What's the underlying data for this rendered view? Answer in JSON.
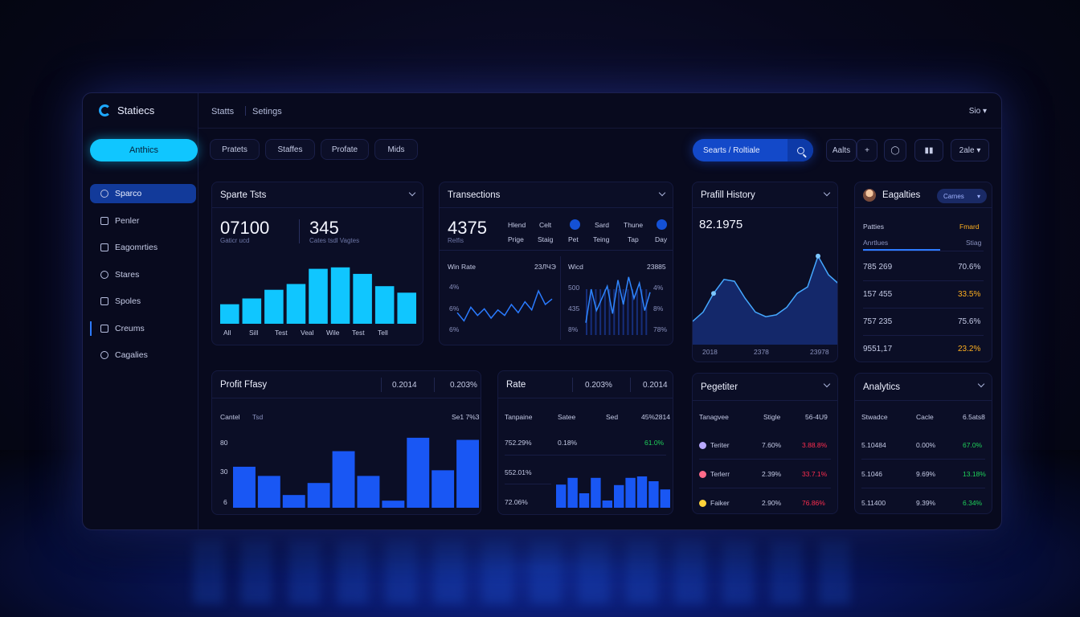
{
  "app": {
    "name": "Statiecs"
  },
  "topbar": {
    "links": [
      "Statts",
      "Setings"
    ],
    "user": "Sio"
  },
  "sidebar": {
    "primary_button": "Anthics",
    "items": [
      {
        "label": "Sparco",
        "icon": "search-icon",
        "active": true
      },
      {
        "label": "Penler",
        "icon": "image-icon"
      },
      {
        "label": "Eagomrties",
        "icon": "link-icon"
      },
      {
        "label": "Stares",
        "icon": "chat-icon"
      },
      {
        "label": "Spoles",
        "icon": "lock-icon"
      },
      {
        "label": "Creums",
        "icon": "image-icon",
        "marked": true
      },
      {
        "label": "Cagalies",
        "icon": "smile-icon"
      }
    ]
  },
  "toolbar": {
    "chips": [
      "Pratets",
      "Staffes",
      "Profate",
      "Mids"
    ],
    "search_text": "Searts / Roltiale",
    "tools": [
      "Aalts",
      "+",
      "",
      "",
      "2ale"
    ]
  },
  "card1": {
    "title": "Sparte Tsts",
    "big1": "07100",
    "sub1": "Gaticr ucd",
    "big2": "345",
    "sub2": "Cates tsdl Vagtes",
    "x_labels": [
      "All",
      "Sill",
      "Test",
      "Veal",
      "Wile",
      "Test",
      "Tell"
    ]
  },
  "card2": {
    "title": "Transections",
    "big": "4375",
    "sub": "Relfis",
    "top_labels": [
      "Hlend",
      "Prige",
      "Celt",
      "Staig",
      "Pet",
      "Sard",
      "Teing",
      "Thune",
      "Tap",
      "Day"
    ],
    "left_title": "Win Rate",
    "left_value": "23ЛЧЭ",
    "left_y": [
      "4%",
      "6%",
      "6%"
    ],
    "right_title": "Wicd",
    "right_value": "23885",
    "right_y": [
      "500",
      "435",
      "8%"
    ],
    "right_y2": [
      "4%",
      "8%",
      "78%"
    ]
  },
  "card3": {
    "title": "Prafill History",
    "big": "82.1975",
    "x_labels": [
      "2018",
      "2378",
      "23978"
    ]
  },
  "card4": {
    "title": "Eagalties",
    "select": "Carnes",
    "head_left": "Patties",
    "head_right": "Fmard",
    "tab_left": "Anrtlues",
    "tab_right": "Stiag",
    "rows": [
      {
        "value": "785 269",
        "pct": "70.6%",
        "pct_color": "white"
      },
      {
        "value": "157 455",
        "pct": "33.5%",
        "pct_color": "orange"
      },
      {
        "value": "757 235",
        "pct": "75.6%",
        "pct_color": "white"
      },
      {
        "value": "9551,17",
        "pct": "23.2%",
        "pct_color": "orange"
      }
    ]
  },
  "card5": {
    "title": "Profit Ffasy",
    "stat1": "0.2014",
    "stat2": "0.203%",
    "sub_left": "Cantel",
    "sub_mid": "Tsd",
    "sub_right": "Se1 7%3",
    "y_labels": [
      "80",
      "30",
      "6"
    ]
  },
  "card6": {
    "title": "Rate",
    "stat1": "0.203%",
    "stat2": "0.2014",
    "cols": [
      "Tanpaine",
      "Satee",
      "Sed",
      "45%2814"
    ],
    "rows": [
      {
        "c1": "752.29%",
        "c2": "0.18%",
        "c3": "61.0%"
      },
      {
        "c1": "552.01%"
      },
      {
        "c1": "72.06%"
      }
    ]
  },
  "card7": {
    "title": "Pegetiter",
    "cols": [
      "Tanagvee",
      "Stigle",
      "56-4U9"
    ],
    "rows": [
      {
        "name": "Teriter",
        "v": "7.60%",
        "p": "3.88.8%",
        "dot": "#b9a9ff"
      },
      {
        "name": "Terlerr",
        "v": "2.39%",
        "p": "33.7.1%",
        "dot": "#ff6b8a"
      },
      {
        "name": "Faiker",
        "v": "2.90%",
        "p": "76.86%",
        "dot": "#ffd23a"
      }
    ]
  },
  "card8": {
    "title": "Analytics",
    "cols": [
      "Stwadce",
      "Cacle",
      "6.5ats8"
    ],
    "rows": [
      {
        "a": "5.10484",
        "b": "0.00%",
        "c": "67.0%"
      },
      {
        "a": "5.1046",
        "b": "9.69%",
        "c": "13.18%"
      },
      {
        "a": "5.11400",
        "b": "9.39%",
        "c": "6.34%"
      }
    ]
  },
  "charts": {
    "card1_bars": [
      0.27,
      0.35,
      0.47,
      0.55,
      0.76,
      0.78,
      0.69,
      0.52,
      0.43
    ],
    "card5_bars": [
      0.58,
      0.45,
      0.18,
      0.35,
      0.8,
      0.45,
      0.1,
      0.99,
      0.53,
      0.96
    ],
    "card6_bars": [
      0.48,
      0.62,
      0.3,
      0.62,
      0.15,
      0.47,
      0.62,
      0.65,
      0.55,
      0.38
    ],
    "card2_left_line": [
      0.35,
      0.2,
      0.45,
      0.3,
      0.42,
      0.25,
      0.4,
      0.3,
      0.5,
      0.35,
      0.55,
      0.4,
      0.75,
      0.5,
      0.6
    ],
    "card2_right_line": [
      0.2,
      0.75,
      0.4,
      0.6,
      0.8,
      0.35,
      0.9,
      0.5,
      0.95,
      0.6,
      0.85,
      0.4,
      0.7
    ],
    "card3_area": [
      0.25,
      0.35,
      0.55,
      0.7,
      0.68,
      0.5,
      0.35,
      0.3,
      0.32,
      0.4,
      0.55,
      0.62,
      0.95,
      0.75,
      0.65
    ]
  },
  "colors": {
    "accent": "#10c6ff",
    "primary": "#1349c9",
    "bar": "#1a5cff",
    "green": "#1fd15a",
    "red": "#ff2d4f",
    "orange": "#ffb020"
  }
}
